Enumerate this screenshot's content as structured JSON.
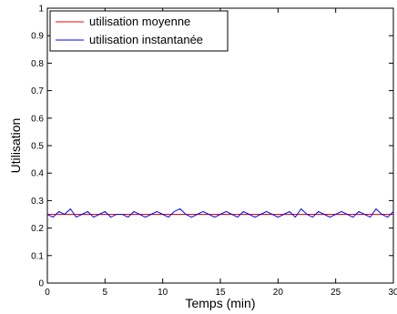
{
  "chart_data": {
    "type": "line",
    "xlabel": "Temps (min)",
    "ylabel": "Utilisation",
    "xlim": [
      0,
      30
    ],
    "ylim": [
      0,
      1
    ],
    "xticks": [
      0,
      5,
      10,
      15,
      20,
      25,
      30
    ],
    "xtick_labels": [
      "0",
      "5",
      "10",
      "15",
      "20",
      "25",
      "30"
    ],
    "yticks": [
      0,
      0.1,
      0.2,
      0.3,
      0.4,
      0.5,
      0.6,
      0.7,
      0.8,
      0.9,
      1
    ],
    "ytick_labels": [
      "0",
      "0.1",
      "0.2",
      "0.3",
      "0.4",
      "0.5",
      "0.6",
      "0.7",
      "0.8",
      "0.9",
      "1"
    ],
    "grid": false,
    "legend_position": "top-left",
    "series": [
      {
        "name": "utilisation moyenne",
        "color": "#ff0000",
        "x": [
          0,
          30
        ],
        "y": [
          0.25,
          0.25
        ]
      },
      {
        "name": "utilisation instantanée",
        "color": "#0000ff",
        "x": [
          0,
          0.5,
          1,
          1.5,
          2,
          2.5,
          3,
          3.5,
          4,
          4.5,
          5,
          5.5,
          6,
          6.5,
          7,
          7.5,
          8,
          8.5,
          9,
          9.5,
          10,
          10.5,
          11,
          11.5,
          12,
          12.5,
          13,
          13.5,
          14,
          14.5,
          15,
          15.5,
          16,
          16.5,
          17,
          17.5,
          18,
          18.5,
          19,
          19.5,
          20,
          20.5,
          21,
          21.5,
          22,
          22.5,
          23,
          23.5,
          24,
          24.5,
          25,
          25.5,
          26,
          26.5,
          27,
          27.5,
          28,
          28.5,
          29,
          29.5,
          30
        ],
        "y": [
          0.25,
          0.24,
          0.26,
          0.25,
          0.27,
          0.24,
          0.25,
          0.26,
          0.24,
          0.25,
          0.26,
          0.24,
          0.25,
          0.25,
          0.24,
          0.26,
          0.25,
          0.24,
          0.25,
          0.26,
          0.25,
          0.24,
          0.26,
          0.27,
          0.25,
          0.24,
          0.25,
          0.26,
          0.25,
          0.24,
          0.25,
          0.26,
          0.25,
          0.24,
          0.26,
          0.25,
          0.24,
          0.25,
          0.26,
          0.25,
          0.24,
          0.25,
          0.26,
          0.24,
          0.27,
          0.25,
          0.24,
          0.26,
          0.25,
          0.24,
          0.25,
          0.26,
          0.25,
          0.24,
          0.26,
          0.25,
          0.24,
          0.27,
          0.25,
          0.24,
          0.26
        ]
      }
    ]
  }
}
